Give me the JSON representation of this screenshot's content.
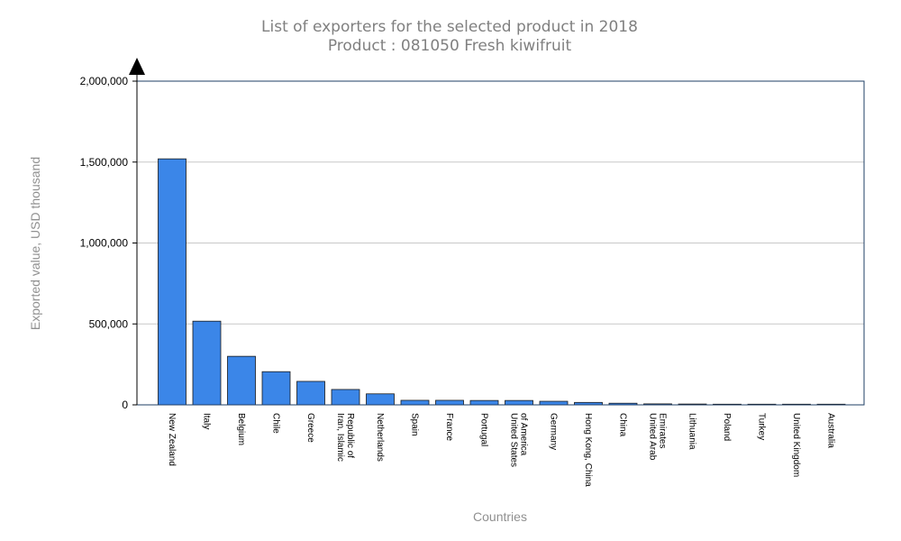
{
  "chart_data": {
    "type": "bar",
    "title": "List of exporters for the selected product in 2018",
    "subtitle": "Product : 081050 Fresh kiwifruit",
    "xlabel": "Countries",
    "ylabel": "Exported value, USD thousand",
    "ylim": [
      0,
      2000000
    ],
    "yticks": [
      0,
      500000,
      1000000,
      1500000,
      2000000
    ],
    "ytick_labels": [
      "0",
      "500,000",
      "1,000,000",
      "1,500,000",
      "2,000,000"
    ],
    "grid": true,
    "legend": "none",
    "bar_color": "#3b86e8",
    "categories": [
      [
        "New Zealand"
      ],
      [
        "Italy"
      ],
      [
        "Belgium"
      ],
      [
        "Chile"
      ],
      [
        "Greece"
      ],
      [
        "Iran, Islamic",
        "Republic of"
      ],
      [
        "Netherlands"
      ],
      [
        "Spain"
      ],
      [
        "France"
      ],
      [
        "Portugal"
      ],
      [
        "United States",
        "of America"
      ],
      [
        "Germany"
      ],
      [
        "Hong Kong, China"
      ],
      [
        "China"
      ],
      [
        "United Arab",
        "Emirates"
      ],
      [
        "Lithuania"
      ],
      [
        "Poland"
      ],
      [
        "Turkey"
      ],
      [
        "United Kingdom"
      ],
      [
        "Australia"
      ]
    ],
    "values": [
      1520000,
      517000,
      300000,
      205000,
      145000,
      95000,
      68000,
      28000,
      28000,
      27000,
      27000,
      22000,
      15000,
      10000,
      6000,
      5000,
      4000,
      4000,
      4000,
      4000
    ]
  }
}
